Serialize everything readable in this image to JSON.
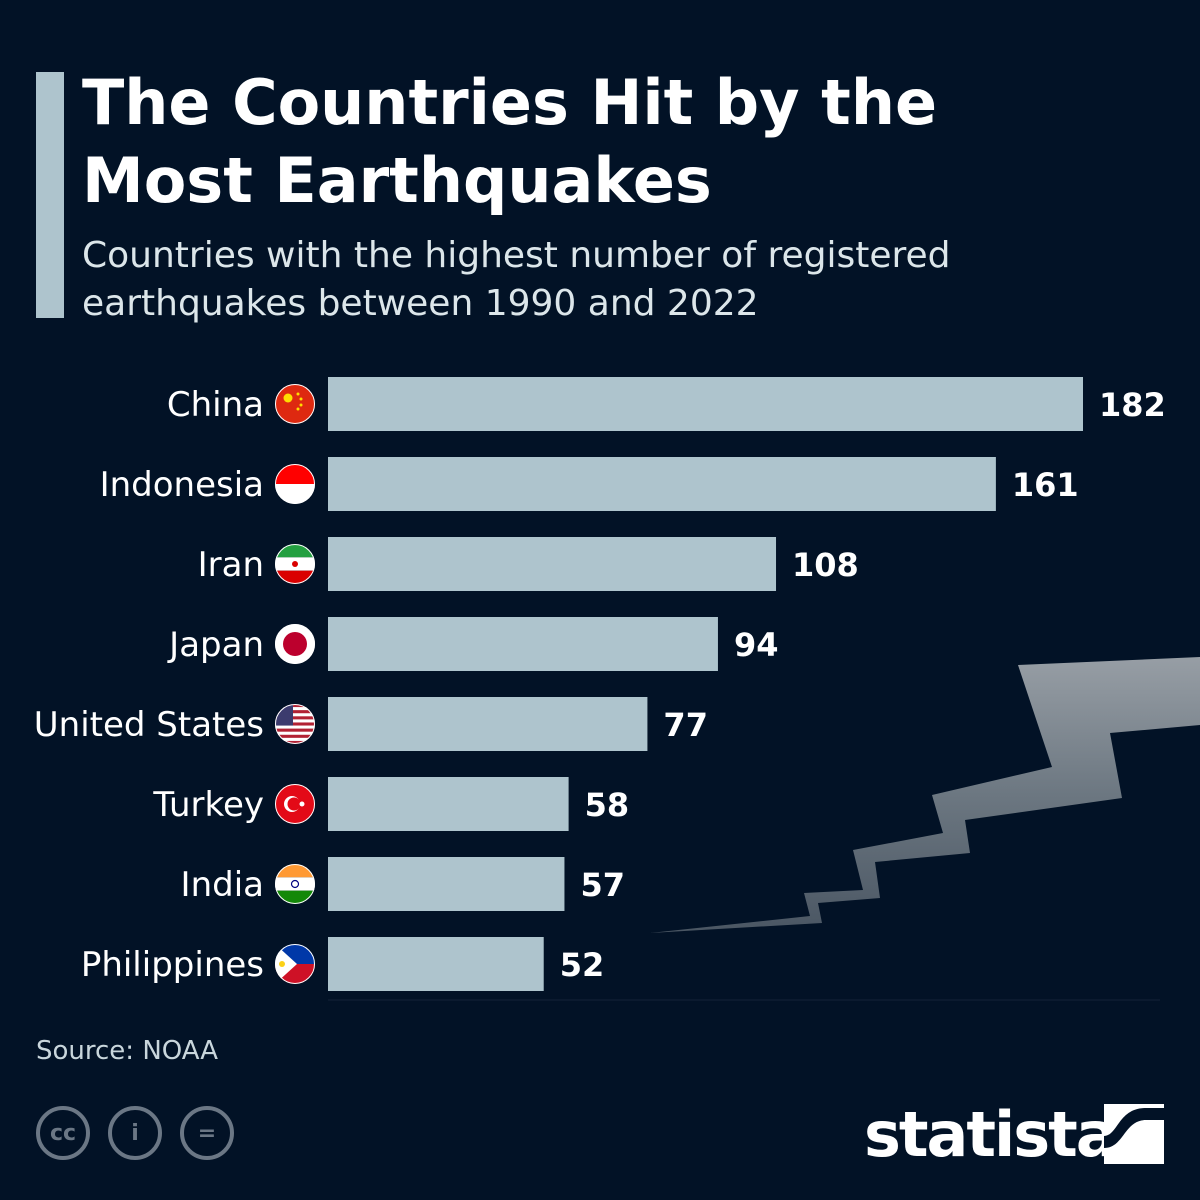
{
  "title": "The Countries Hit by the Most Earthquakes",
  "subtitle": "Countries with the highest number of registered earthquakes between 1990 and 2022",
  "source": "Source: NOAA",
  "brand": "statista",
  "colors": {
    "background": "#021226",
    "bar": "#aec4cd",
    "accent": "#aec4cd"
  },
  "chart_data": {
    "type": "bar",
    "orientation": "horizontal",
    "categories": [
      "China",
      "Indonesia",
      "Iran",
      "Japan",
      "United States",
      "Turkey",
      "India",
      "Philippines"
    ],
    "values": [
      182,
      161,
      108,
      94,
      77,
      58,
      57,
      52
    ],
    "data_labels": [
      "182",
      "161",
      "108",
      "94",
      "77",
      "58",
      "57",
      "52"
    ],
    "flags": [
      "china-flag",
      "indonesia-flag",
      "iran-flag",
      "japan-flag",
      "us-flag",
      "turkey-flag",
      "india-flag",
      "philippines-flag"
    ],
    "xlim": [
      0,
      182
    ],
    "grid": false,
    "legend": "none"
  }
}
